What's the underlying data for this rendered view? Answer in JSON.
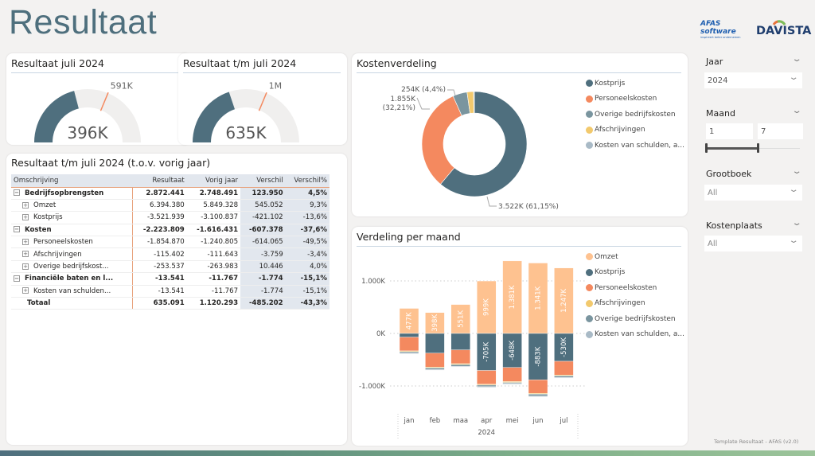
{
  "page_title": "Resultaat",
  "logos": {
    "afas": "AFAS software",
    "afas_tagline": "inspireert beter ondernemen",
    "davista": "DAVISTA"
  },
  "gauge1": {
    "title": "Resultaat juli 2024",
    "value": 396,
    "value_label": "396K",
    "target": 591,
    "target_label": "591K"
  },
  "gauge2": {
    "title": "Resultaat t/m juli 2024",
    "value": 635,
    "value_label": "635K",
    "target": 1000,
    "target_label": "1M"
  },
  "table": {
    "title": "Resultaat t/m juli 2024 (t.o.v. vorig jaar)",
    "headers": [
      "Omschrijving",
      "Resultaat",
      "Vorig jaar",
      "Verschil",
      "Verschil%"
    ],
    "rows": [
      {
        "level": 0,
        "bold": true,
        "cells": [
          "Bedrijfsopbrengsten",
          "2.872.441",
          "2.748.491",
          "123.950",
          "4,5%"
        ]
      },
      {
        "level": 1,
        "bold": false,
        "cells": [
          "Omzet",
          "6.394.380",
          "5.849.328",
          "545.052",
          "9,3%"
        ]
      },
      {
        "level": 1,
        "bold": false,
        "cells": [
          "Kostprijs",
          "-3.521.939",
          "-3.100.837",
          "-421.102",
          "-13,6%"
        ]
      },
      {
        "level": 0,
        "bold": true,
        "cells": [
          "Kosten",
          "-2.223.809",
          "-1.616.431",
          "-607.378",
          "-37,6%"
        ]
      },
      {
        "level": 1,
        "bold": false,
        "cells": [
          "Personeelskosten",
          "-1.854.870",
          "-1.240.805",
          "-614.065",
          "-49,5%"
        ]
      },
      {
        "level": 1,
        "bold": false,
        "cells": [
          "Afschrijvingen",
          "-115.402",
          "-111.643",
          "-3.759",
          "-3,4%"
        ]
      },
      {
        "level": 1,
        "bold": false,
        "cells": [
          "Overige bedrijfskost...",
          "-253.537",
          "-263.983",
          "10.446",
          "4,0%"
        ]
      },
      {
        "level": 0,
        "bold": true,
        "cells": [
          "Financiële baten en l...",
          "-13.541",
          "-11.767",
          "-1.774",
          "-15,1%"
        ]
      },
      {
        "level": 1,
        "bold": false,
        "cells": [
          "Kosten van schulden...",
          "-13.541",
          "-11.767",
          "-1.774",
          "-15,1%"
        ]
      },
      {
        "level": -1,
        "bold": true,
        "cells": [
          "Totaal",
          "635.091",
          "1.120.293",
          "-485.202",
          "-43,3%"
        ]
      }
    ]
  },
  "colors": {
    "kostprijs": "#4f6f7e",
    "personeel": "#f4895f",
    "overige": "#7a959f",
    "afschr": "#f2c96d",
    "schulden": "#a9bac6",
    "omzet": "#fec290"
  },
  "chart_data": [
    {
      "type": "pie",
      "title": "Kostenverdeling",
      "slices": [
        {
          "name": "Kostprijs",
          "value": 3522,
          "percent": 61.15,
          "label": "3.522K (61,15%)",
          "color": "#4f6f7e"
        },
        {
          "name": "Personeelskosten",
          "value": 1855,
          "percent": 32.21,
          "label": "1.855K",
          "label2": "(32,21%)",
          "color": "#f4895f"
        },
        {
          "name": "Overige bedrijfskosten",
          "value": 254,
          "percent": 4.4,
          "label": "254K (4,4%)",
          "color": "#7a959f"
        },
        {
          "name": "Afschrijvingen",
          "value": 115,
          "percent": 2.0,
          "color": "#f2c96d"
        },
        {
          "name": "Kosten van schulden, a...",
          "value": 14,
          "percent": 0.24,
          "color": "#a9bac6"
        }
      ],
      "legend": [
        "Kostprijs",
        "Personeelskosten",
        "Overige bedrijfskosten",
        "Afschrijvingen",
        "Kosten van schulden, a..."
      ]
    },
    {
      "type": "bar",
      "stacked": true,
      "title": "Verdeling per maand",
      "categories": [
        "jan",
        "feb",
        "maa",
        "apr",
        "mei",
        "jun",
        "jul"
      ],
      "xgroup": "2024",
      "yticks": [
        {
          "v": 1000,
          "label": "1.000K"
        },
        {
          "v": 0,
          "label": "0K"
        },
        {
          "v": -1000,
          "label": "-1.000K"
        }
      ],
      "ylim": [
        -1250,
        1450
      ],
      "series": [
        {
          "name": "Omzet",
          "color": "#fec290",
          "values": [
            477,
            398,
            551,
            999,
            1381,
            1341,
            1247
          ],
          "labels": [
            "477K",
            "398K",
            "551K",
            "999K",
            "1.381K",
            "1.341K",
            "1.247K"
          ]
        },
        {
          "name": "Kostprijs",
          "color": "#4f6f7e",
          "values": [
            -70,
            -374,
            -313,
            -705,
            -648,
            -883,
            -530
          ],
          "labels": [
            "",
            "",
            "",
            "-705K",
            "-648K",
            "-883K",
            "-530K"
          ]
        },
        {
          "name": "Personeelskosten",
          "color": "#f4895f",
          "values": [
            -263,
            -268,
            -263,
            -263,
            -268,
            -258,
            -263
          ]
        },
        {
          "name": "Afschrijvingen",
          "color": "#f2c96d",
          "values": [
            -16,
            -16,
            -17,
            -16,
            -17,
            -16,
            -16
          ]
        },
        {
          "name": "Overige bedrijfskosten",
          "color": "#7a959f",
          "values": [
            -25,
            -30,
            -32,
            -30,
            -20,
            -35,
            -28
          ]
        },
        {
          "name": "Kosten van schulden, a...",
          "color": "#a9bac6",
          "values": [
            -2,
            -2,
            -2,
            -2,
            -2,
            -2,
            -2
          ]
        }
      ]
    }
  ],
  "slicers": {
    "jaar": {
      "label": "Jaar",
      "value": "2024"
    },
    "maand": {
      "label": "Maand",
      "from": "1",
      "to": "7",
      "range_fraction": [
        0,
        0.55
      ]
    },
    "grootboek": {
      "label": "Grootboek",
      "value": "All"
    },
    "kostenplaats": {
      "label": "Kostenplaats",
      "value": "All"
    }
  },
  "footer": "Template Resultaat - AFAS (v2.0)"
}
